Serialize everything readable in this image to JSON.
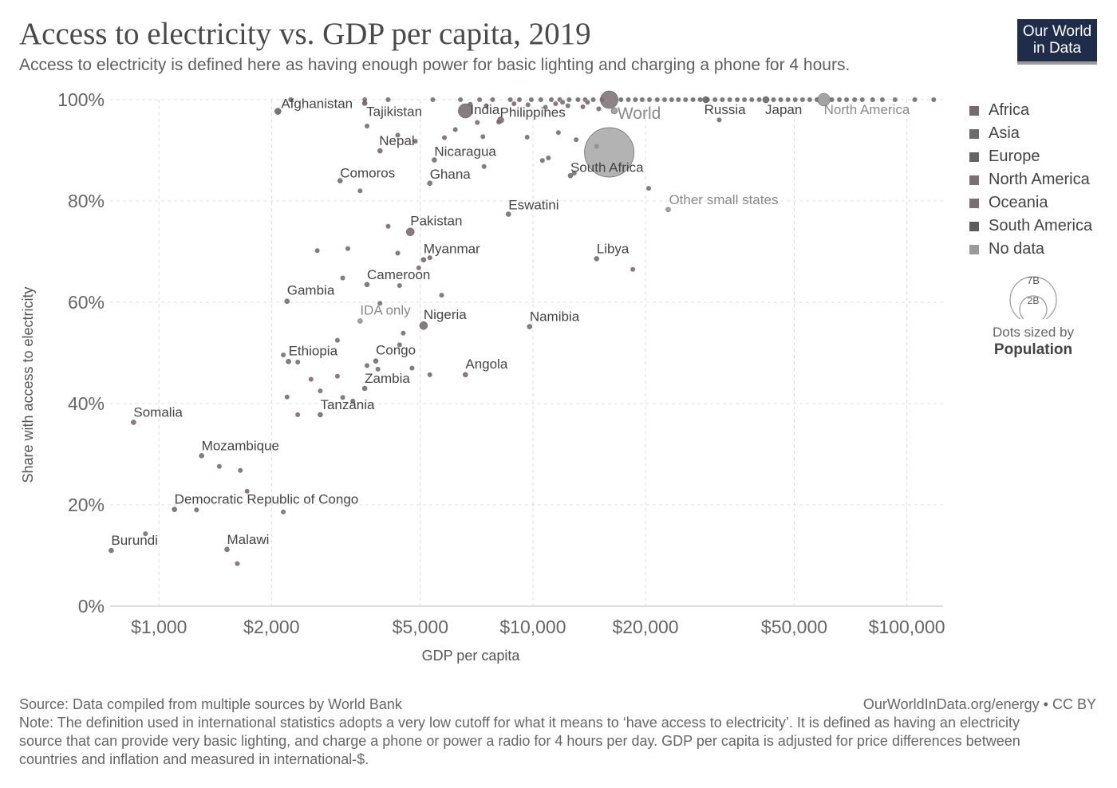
{
  "header": {
    "title": "Access to electricity vs. GDP per capita, 2019",
    "subtitle": "Access to electricity is defined here as having enough power for basic lighting and charging a phone for 4 hours.",
    "logo_line1": "Our World",
    "logo_line2": "in Data"
  },
  "legend": {
    "items": [
      {
        "label": "Africa",
        "color": "#7a6a6e"
      },
      {
        "label": "Asia",
        "color": "#706a70"
      },
      {
        "label": "Europe",
        "color": "#666266"
      },
      {
        "label": "North America",
        "color": "#7d7074"
      },
      {
        "label": "Oceania",
        "color": "#7a6e72"
      },
      {
        "label": "South America",
        "color": "#5f5a5c"
      },
      {
        "label": "No data",
        "color": "#9a9a9a"
      }
    ],
    "size_large": "7B",
    "size_small": "2B",
    "size_caption": "Dots sized by",
    "size_caption_bold": "Population"
  },
  "footer": {
    "source": "Source: Data compiled from multiple sources by World Bank",
    "right": "OurWorldInData.org/energy • CC BY",
    "note": "Note: The definition used in international statistics adopts a very low cutoff for what it means to ‘have access to electricity’. It is defined as having an electricity source that can provide very basic lighting, and charge a phone or power a radio for 4 hours per day. GDP per capita is adjusted for price differences between countries and inflation and measured in international-$."
  },
  "chart_data": {
    "type": "scatter",
    "title": "Access to electricity vs. GDP per capita, 2019",
    "xlabel": "GDP per capita",
    "ylabel": "Share with access to electricity",
    "xscale": "log",
    "xlim": [
      740,
      125000
    ],
    "ylim": [
      0,
      100
    ],
    "xticks": [
      {
        "value": 1000,
        "label": "$1,000"
      },
      {
        "value": 2000,
        "label": "$2,000"
      },
      {
        "value": 5000,
        "label": "$5,000"
      },
      {
        "value": 10000,
        "label": "$10,000"
      },
      {
        "value": 20000,
        "label": "$20,000"
      },
      {
        "value": 50000,
        "label": "$50,000"
      },
      {
        "value": 100000,
        "label": "$100,000"
      }
    ],
    "yticks": [
      {
        "value": 0,
        "label": "0%"
      },
      {
        "value": 20,
        "label": "20%"
      },
      {
        "value": 40,
        "label": "40%"
      },
      {
        "value": 60,
        "label": "60%"
      },
      {
        "value": 80,
        "label": "80%"
      },
      {
        "value": 100,
        "label": "100%"
      }
    ],
    "grid": true,
    "labeled_points": [
      {
        "label": "Afghanistan",
        "x": 2080,
        "y": 97.7,
        "r": 4,
        "dx": 4,
        "dy": -4,
        "color": "#6f6366"
      },
      {
        "label": "Tajikistan",
        "x": 3550,
        "y": 99.3,
        "r": 3,
        "dx": 2,
        "dy": 16,
        "color": "#6f6366"
      },
      {
        "label": "India",
        "x": 6600,
        "y": 97.8,
        "r": 9,
        "dx": 6,
        "dy": 4,
        "color": "#7a6e72"
      },
      {
        "label": "Philippines",
        "x": 8200,
        "y": 96.0,
        "r": 4,
        "dx": -1,
        "dy": -4,
        "color": "#7a6e72"
      },
      {
        "label": "Russia",
        "x": 29000,
        "y": 100,
        "r": 4,
        "dx": -2,
        "dy": 18,
        "color": "#6a6568"
      },
      {
        "label": "Japan",
        "x": 42000,
        "y": 100,
        "r": 4,
        "dx": -1,
        "dy": 18,
        "color": "#6a6568"
      },
      {
        "label": "North America",
        "x": 60000,
        "y": 100,
        "r": 8,
        "dx": 0,
        "dy": 18,
        "color": "#9a9a9a"
      },
      {
        "label": "World",
        "x": 16500,
        "y": 97.8,
        "r": 4,
        "dx": 4,
        "dy": 10,
        "color": "#9a9a9a"
      },
      {
        "label": "Nepal",
        "x": 3900,
        "y": 89.9,
        "r": 3,
        "dx": -1,
        "dy": -7,
        "color": "#7a6e72"
      },
      {
        "label": "Nicaragua",
        "x": 5450,
        "y": 88.1,
        "r": 3,
        "dx": 0,
        "dy": -5,
        "color": "#7a6e72"
      },
      {
        "label": "Comoros",
        "x": 3050,
        "y": 84.0,
        "r": 3,
        "dx": 0,
        "dy": -4,
        "color": "#7a6e72"
      },
      {
        "label": "Ghana",
        "x": 5300,
        "y": 83.5,
        "r": 3,
        "dx": 0,
        "dy": -6,
        "color": "#7a6e72"
      },
      {
        "label": "South Africa",
        "x": 12600,
        "y": 85.0,
        "r": 3,
        "dx": 0,
        "dy": -5,
        "color": "#7a6e72"
      },
      {
        "label": "Eswatini",
        "x": 8600,
        "y": 77.4,
        "r": 3,
        "dx": 0,
        "dy": -6,
        "color": "#7a6e72"
      },
      {
        "label": "Other small states",
        "x": 23000,
        "y": 78.3,
        "r": 3,
        "dx": 1,
        "dy": -7,
        "color": "#9a9a9a"
      },
      {
        "label": "Pakistan",
        "x": 4700,
        "y": 73.9,
        "r": 5,
        "dx": 0,
        "dy": -8,
        "color": "#7a6e72"
      },
      {
        "label": "Myanmar",
        "x": 5100,
        "y": 68.4,
        "r": 3,
        "dx": 0,
        "dy": -8,
        "color": "#7a6e72"
      },
      {
        "label": "Libya",
        "x": 14800,
        "y": 68.6,
        "r": 3,
        "dx": 0,
        "dy": -7,
        "color": "#7a6e72"
      },
      {
        "label": "Cameroon",
        "x": 3600,
        "y": 63.5,
        "r": 3,
        "dx": 0,
        "dy": -7,
        "color": "#7a6e72"
      },
      {
        "label": "Gambia",
        "x": 2200,
        "y": 60.2,
        "r": 3,
        "dx": 0,
        "dy": -8,
        "color": "#7a6e72"
      },
      {
        "label": "IDA only",
        "x": 3450,
        "y": 56.3,
        "r": 3,
        "dx": 0,
        "dy": -8,
        "color": "#9a9a9a"
      },
      {
        "label": "Nigeria",
        "x": 5100,
        "y": 55.4,
        "r": 5,
        "dx": 0,
        "dy": -8,
        "color": "#7a6e72"
      },
      {
        "label": "Namibia",
        "x": 9800,
        "y": 55.2,
        "r": 3,
        "dx": 0,
        "dy": -7,
        "color": "#7a6e72"
      },
      {
        "label": "Ethiopia",
        "x": 2220,
        "y": 48.3,
        "r": 3,
        "dx": 0,
        "dy": -8,
        "color": "#7a6e72"
      },
      {
        "label": "Congo",
        "x": 3800,
        "y": 48.4,
        "r": 3,
        "dx": 0,
        "dy": -8,
        "color": "#7a6e72"
      },
      {
        "label": "Angola",
        "x": 6600,
        "y": 45.7,
        "r": 3,
        "dx": 0,
        "dy": -8,
        "color": "#7a6e72"
      },
      {
        "label": "Zambia",
        "x": 3550,
        "y": 43.0,
        "r": 3,
        "dx": 0,
        "dy": -7,
        "color": "#7a6e72"
      },
      {
        "label": "Tanzania",
        "x": 2700,
        "y": 37.8,
        "r": 3,
        "dx": 0,
        "dy": -7,
        "color": "#7a6e72"
      },
      {
        "label": "Somalia",
        "x": 855,
        "y": 36.3,
        "r": 3,
        "dx": 0,
        "dy": -7,
        "color": "#7a6e72"
      },
      {
        "label": "Mozambique",
        "x": 1300,
        "y": 29.7,
        "r": 3,
        "dx": 0,
        "dy": -7,
        "color": "#7a6e72"
      },
      {
        "label": "Democratic Republic of Congo",
        "x": 1100,
        "y": 19.1,
        "r": 3,
        "dx": 0,
        "dy": -7,
        "color": "#7a6e72"
      },
      {
        "label": "Burundi",
        "x": 745,
        "y": 11.0,
        "r": 3,
        "dx": 0,
        "dy": -7,
        "color": "#7a6e72"
      },
      {
        "label": "Malawi",
        "x": 1520,
        "y": 11.2,
        "r": 3,
        "dx": 0,
        "dy": -7,
        "color": "#7a6e72"
      }
    ],
    "bubbles": [
      {
        "x": 16000,
        "y": 89.6,
        "r": 31,
        "color": "#9a9a9a",
        "opacity": 0.75
      },
      {
        "x": 16000,
        "y": 100,
        "r": 11,
        "color": "#7a6e72",
        "opacity": 0.85
      }
    ],
    "points": [
      [
        2250,
        100
      ],
      [
        3550,
        100
      ],
      [
        4100,
        100
      ],
      [
        5400,
        100
      ],
      [
        6400,
        100
      ],
      [
        7200,
        100
      ],
      [
        7800,
        100
      ],
      [
        8700,
        100
      ],
      [
        9200,
        100
      ],
      [
        9900,
        100
      ],
      [
        10500,
        100
      ],
      [
        11200,
        100
      ],
      [
        11800,
        100
      ],
      [
        12500,
        100
      ],
      [
        13200,
        100
      ],
      [
        13800,
        100
      ],
      [
        14500,
        100
      ],
      [
        15300,
        100
      ],
      [
        17200,
        100
      ],
      [
        18000,
        100
      ],
      [
        18800,
        100
      ],
      [
        19600,
        100
      ],
      [
        20500,
        100
      ],
      [
        21500,
        100
      ],
      [
        22500,
        100
      ],
      [
        23500,
        100
      ],
      [
        24500,
        100
      ],
      [
        25600,
        100
      ],
      [
        26800,
        100
      ],
      [
        28000,
        100
      ],
      [
        29300,
        100
      ],
      [
        30700,
        100
      ],
      [
        32100,
        100
      ],
      [
        33600,
        100
      ],
      [
        35200,
        100
      ],
      [
        36800,
        100
      ],
      [
        38500,
        100
      ],
      [
        40300,
        100
      ],
      [
        44000,
        100
      ],
      [
        46000,
        100
      ],
      [
        48100,
        100
      ],
      [
        50300,
        100
      ],
      [
        52600,
        100
      ],
      [
        55000,
        100
      ],
      [
        57500,
        100
      ],
      [
        63000,
        100
      ],
      [
        66000,
        100
      ],
      [
        69000,
        100
      ],
      [
        72500,
        100
      ],
      [
        76000,
        100
      ],
      [
        81000,
        100
      ],
      [
        86000,
        100
      ],
      [
        93000,
        100
      ],
      [
        105000,
        100
      ],
      [
        118000,
        100
      ],
      [
        8900,
        99.2
      ],
      [
        9700,
        99
      ],
      [
        11500,
        99.2
      ],
      [
        12400,
        98.8
      ],
      [
        13600,
        98.6
      ],
      [
        6800,
        99.1
      ],
      [
        7500,
        98.8
      ],
      [
        10800,
        98.5
      ],
      [
        15000,
        98.2
      ],
      [
        12000,
        99.5
      ],
      [
        14000,
        99.5
      ],
      [
        3600,
        94.8
      ],
      [
        4350,
        93.0
      ],
      [
        4850,
        91.8
      ],
      [
        5800,
        92.5
      ],
      [
        6200,
        94.1
      ],
      [
        7100,
        95.5
      ],
      [
        7350,
        92.7
      ],
      [
        8100,
        95.6
      ],
      [
        9650,
        92.6
      ],
      [
        11700,
        93.5
      ],
      [
        13050,
        92.1
      ],
      [
        12900,
        85.5
      ],
      [
        11000,
        88.5
      ],
      [
        10600,
        88.0
      ],
      [
        14800,
        90.8
      ],
      [
        31500,
        96.0
      ],
      [
        3450,
        82.0
      ],
      [
        4100,
        75.0
      ],
      [
        7400,
        86.8
      ],
      [
        20400,
        82.5
      ],
      [
        2650,
        70.2
      ],
      [
        3200,
        70.6
      ],
      [
        4350,
        69.7
      ],
      [
        5300,
        68.8
      ],
      [
        4950,
        66.8
      ],
      [
        3100,
        64.8
      ],
      [
        4400,
        63.3
      ],
      [
        5700,
        61.4
      ],
      [
        18500,
        66.5
      ],
      [
        3900,
        59.8
      ],
      [
        4500,
        53.9
      ],
      [
        4400,
        51.6
      ],
      [
        3000,
        52.5
      ],
      [
        2150,
        49.6
      ],
      [
        2350,
        48.2
      ],
      [
        3600,
        47.5
      ],
      [
        3850,
        46.8
      ],
      [
        4750,
        47.0
      ],
      [
        5300,
        45.7
      ],
      [
        3000,
        45.4
      ],
      [
        2550,
        44.8
      ],
      [
        2700,
        42.5
      ],
      [
        2200,
        41.3
      ],
      [
        3100,
        41.2
      ],
      [
        3300,
        40.5
      ],
      [
        2350,
        37.8
      ],
      [
        1450,
        27.6
      ],
      [
        1650,
        26.8
      ],
      [
        1720,
        22.7
      ],
      [
        1260,
        19.0
      ],
      [
        2150,
        18.6
      ],
      [
        920,
        14.3
      ],
      [
        1620,
        8.4
      ]
    ]
  }
}
